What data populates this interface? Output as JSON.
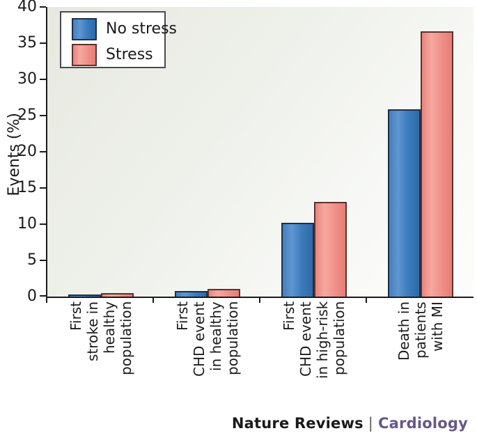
{
  "chart_data": {
    "type": "bar",
    "title": "",
    "y_title": "Events (%)",
    "ylim": [
      0,
      40
    ],
    "yticks": [
      0,
      5,
      10,
      15,
      20,
      25,
      30,
      35,
      40
    ],
    "grid": false,
    "legend_position": "top-left",
    "categories": [
      [
        "First",
        "stroke in",
        "healthy",
        "population"
      ],
      [
        "First",
        "CHD event",
        "in healthy",
        "population"
      ],
      [
        "First",
        "CHD event",
        "in high-risk",
        "population"
      ],
      [
        "Death in",
        "patients",
        "with MI"
      ]
    ],
    "series": [
      {
        "name": "No stress",
        "values": [
          0.3,
          0.8,
          10.2,
          25.9
        ],
        "color": "#3e7dbf",
        "fill_left": "#447fbe",
        "fill_light": "#5f97d1",
        "fill_mid": "#3d7cbd",
        "fill_right": "#2e6aa9",
        "border": "#1f2f47"
      },
      {
        "name": "Stress",
        "values": [
          0.5,
          1.1,
          13.1,
          36.6
        ],
        "color": "#f0938b",
        "fill_left": "#e8857d",
        "fill_light": "#f6a89f",
        "fill_mid": "#f0938b",
        "fill_right": "#e87d75",
        "border": "#59332f"
      }
    ],
    "axis_color": "#1a1a1a",
    "plot_bg_start": "#e7e9e1",
    "plot_bg_end": "#fdfdfc"
  },
  "footer": {
    "journal": "Nature Reviews",
    "separator": "|",
    "section": "Cardiology",
    "section_color": "#65588a"
  }
}
